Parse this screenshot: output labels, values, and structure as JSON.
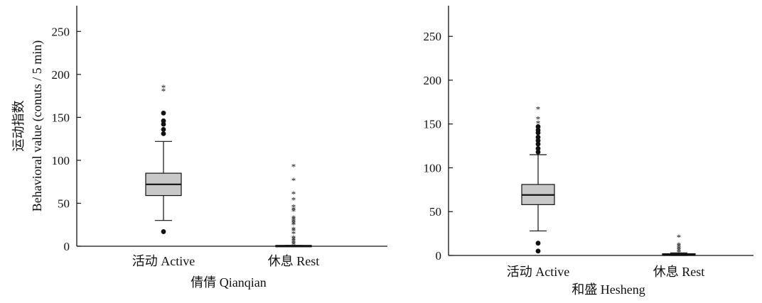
{
  "chart_data": [
    {
      "type": "box",
      "xlabel": "倩倩 Qianqian",
      "ylabel": "Behavioral value (conuts / 5 min)",
      "ylabel_cn": "运动指数",
      "ylim": [
        0,
        280
      ],
      "yticks": [
        0,
        50,
        100,
        150,
        200,
        250
      ],
      "categories": [
        {
          "label": "活动 Active",
          "min": 30,
          "q1": 59,
          "median": 72,
          "q3": 85,
          "max": 122,
          "outliers_dot": [
            17,
            131,
            136,
            142,
            146,
            155
          ],
          "outliers_star": [
            181,
            185
          ]
        },
        {
          "label": "休息 Rest",
          "min": 0,
          "q1": 0,
          "median": 0,
          "q3": 1,
          "max": 1,
          "outliers_dot": [],
          "outliers_star": [
            2,
            4,
            6,
            8,
            10,
            15,
            18,
            20,
            25,
            27,
            29,
            31,
            33,
            41,
            43,
            46,
            54,
            61,
            77,
            93
          ]
        }
      ]
    },
    {
      "type": "box",
      "xlabel": "和盛 Hesheng",
      "ylabel": "",
      "ylim": [
        0,
        285
      ],
      "yticks": [
        0,
        50,
        100,
        150,
        200,
        250
      ],
      "categories": [
        {
          "label": "活动 Active",
          "min": 28,
          "q1": 58,
          "median": 69,
          "q3": 81,
          "max": 115,
          "outliers_dot": [
            5,
            14,
            118,
            122,
            127,
            131,
            135,
            140,
            143,
            147
          ],
          "outliers_star": [
            151,
            156,
            167
          ]
        },
        {
          "label": "休息 Rest",
          "min": 0,
          "q1": 0,
          "median": 1,
          "q3": 2,
          "max": 3,
          "outliers_dot": [],
          "outliers_star": [
            4,
            6,
            8,
            10,
            12,
            21
          ]
        }
      ]
    }
  ]
}
